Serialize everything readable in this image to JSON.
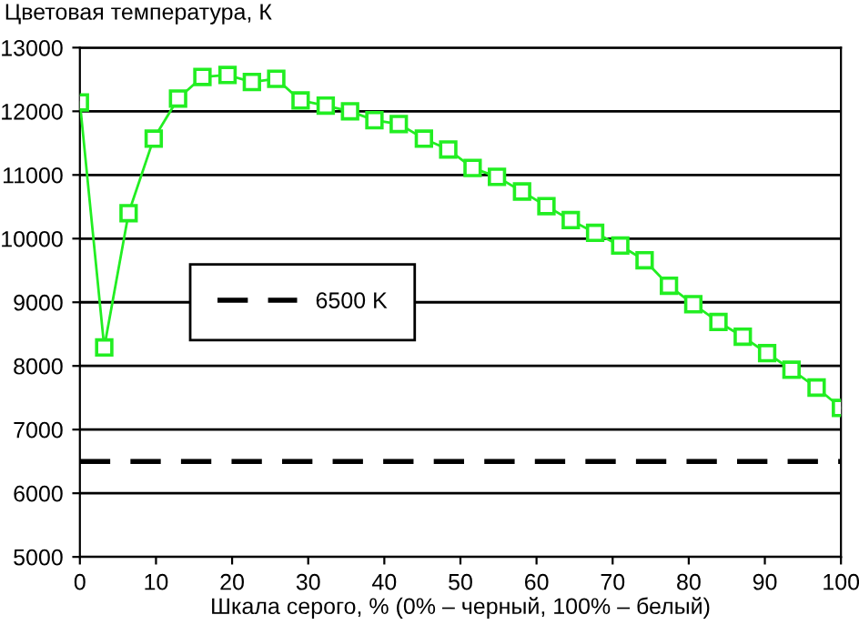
{
  "chart_data": {
    "type": "line",
    "ylabel": "Цветовая температура, К",
    "xlabel": "Шкала серого, % (0% – черный, 100% – белый)",
    "x": [
      0,
      3.2,
      6.4,
      9.7,
      12.9,
      16.1,
      19.4,
      22.6,
      25.8,
      29,
      32.3,
      35.5,
      38.7,
      41.9,
      45.2,
      48.4,
      51.6,
      54.8,
      58.1,
      61.3,
      64.5,
      67.7,
      71,
      74.2,
      77.4,
      80.6,
      83.9,
      87.1,
      90.3,
      93.5,
      96.8,
      100
    ],
    "series": [
      {
        "color": "#22ee22",
        "values": [
          12140,
          8290,
          10400,
          11570,
          12200,
          12540,
          12570,
          12460,
          12510,
          12170,
          12090,
          12000,
          11860,
          11800,
          11570,
          11400,
          11110,
          10970,
          10740,
          10510,
          10290,
          10090,
          9890,
          9660,
          9260,
          8970,
          8690,
          8460,
          8200,
          7940,
          7660,
          7340
        ]
      }
    ],
    "xlim": [
      0,
      100
    ],
    "xticks": [
      0,
      10,
      20,
      30,
      40,
      50,
      60,
      70,
      80,
      90,
      100
    ],
    "ylim": [
      5000,
      13000
    ],
    "yticks": [
      5000,
      6000,
      7000,
      8000,
      9000,
      10000,
      11000,
      12000,
      13000
    ],
    "ref_lines": [
      {
        "axis": "y",
        "value": 6500,
        "label": "6500 K",
        "color": "#000000",
        "line_style": "dashed"
      }
    ],
    "grid": "y",
    "legend": "center left",
    "marker": "square",
    "line_style": "solid"
  }
}
